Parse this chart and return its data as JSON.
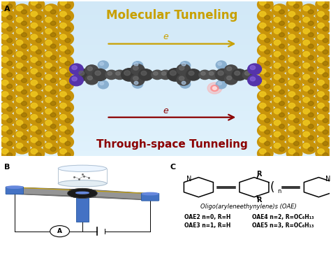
{
  "fig_width": 4.74,
  "fig_height": 3.66,
  "dpi": 100,
  "panel_A": {
    "label": "A",
    "bg_color": "#cce8f5",
    "title_molecular": "Molecular Tunneling",
    "title_molecular_color": "#c8a000",
    "title_throughspace": "Through-space Tunneling",
    "title_throughspace_color": "#8b0000",
    "arrow_molecular_color": "#c8a000",
    "arrow_throughspace_color": "#8b0000"
  },
  "panel_B": {
    "label": "B",
    "plate_color": "#888888",
    "electrode_color": "#4472c4",
    "dome_color": "#ddeeff"
  },
  "panel_C": {
    "label": "C",
    "title": "Oligo(aryleneethynylene)s (OAE)",
    "line1a": "OAE2 n=0, R=H",
    "line1b": "OAE4 n=2, R=OC₆H₁₃",
    "line2a": "OAE3 n=1, R=H",
    "line2b": "OAE5 n=3, R=OC₆H₁₃"
  }
}
